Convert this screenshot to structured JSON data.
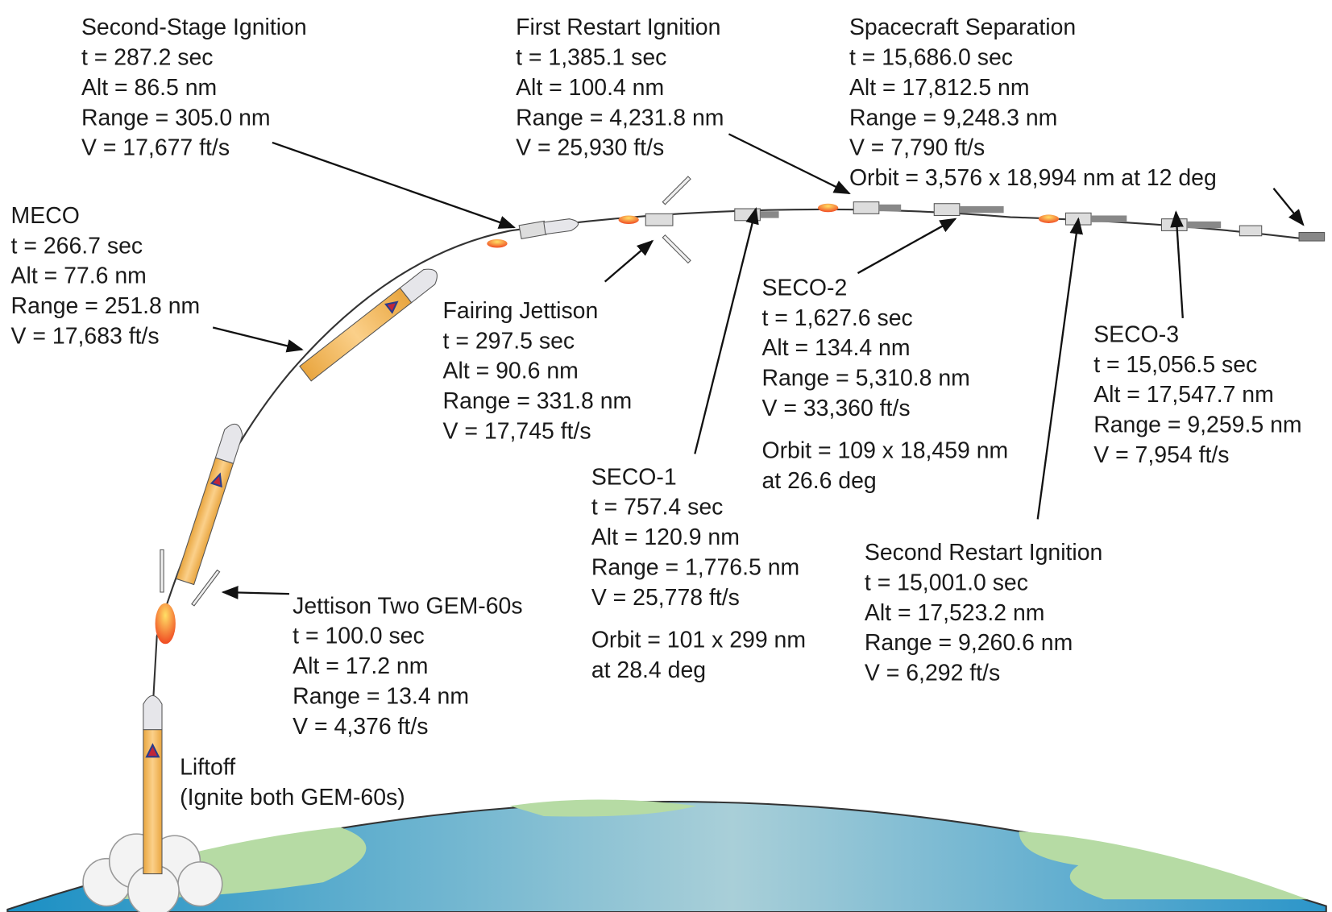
{
  "events": [
    {
      "title": "Second-Stage Ignition",
      "lines": [
        "t = 287.2 sec",
        "Alt = 86.5 nm",
        "Range = 305.0 nm",
        "V = 17,677 ft/s"
      ]
    },
    {
      "title": "First Restart Ignition",
      "lines": [
        "t = 1,385.1 sec",
        "Alt = 100.4 nm",
        "Range = 4,231.8 nm",
        "V = 25,930 ft/s"
      ]
    },
    {
      "title": "Spacecraft Separation",
      "lines": [
        "t = 15,686.0 sec",
        "Alt = 17,812.5 nm",
        "Range = 9,248.3 nm",
        "V = 7,790 ft/s",
        "Orbit = 3,576 x 18,994 nm at 12 deg"
      ]
    },
    {
      "title": "MECO",
      "lines": [
        "t = 266.7 sec",
        "Alt = 77.6 nm",
        "Range = 251.8 nm",
        "V = 17,683 ft/s"
      ]
    },
    {
      "title": "Fairing Jettison",
      "lines": [
        "t = 297.5 sec",
        "Alt = 90.6 nm",
        "Range = 331.8 nm",
        "V = 17,745 ft/s"
      ]
    },
    {
      "title": "SECO-2",
      "lines": [
        "t = 1,627.6 sec",
        "Alt = 134.4 nm",
        "Range = 5,310.8 nm",
        "V = 33,360 ft/s"
      ],
      "orbit": [
        "Orbit = 109 x 18,459 nm",
        "at 26.6 deg"
      ]
    },
    {
      "title": "SECO-3",
      "lines": [
        "t = 15,056.5 sec",
        "Alt = 17,547.7 nm",
        "Range = 9,259.5 nm",
        "V = 7,954 ft/s"
      ]
    },
    {
      "title": "SECO-1",
      "lines": [
        "t = 757.4 sec",
        "Alt = 120.9 nm",
        "Range = 1,776.5 nm",
        "V = 25,778 ft/s"
      ],
      "orbit": [
        "Orbit = 101 x 299 nm",
        "at 28.4 deg"
      ]
    },
    {
      "title": "Second Restart Ignition",
      "lines": [
        "t = 15,001.0 sec",
        "Alt = 17,523.2 nm",
        "Range = 9,260.6 nm",
        "V = 6,292 ft/s"
      ]
    },
    {
      "title": "Jettison Two GEM-60s",
      "lines": [
        "t = 100.0 sec",
        "Alt = 17.2 nm",
        "Range = 13.4 nm",
        "V = 4,376 ft/s"
      ]
    },
    {
      "title": "Liftoff",
      "lines": [
        "(Ignite both GEM-60s)"
      ]
    }
  ]
}
